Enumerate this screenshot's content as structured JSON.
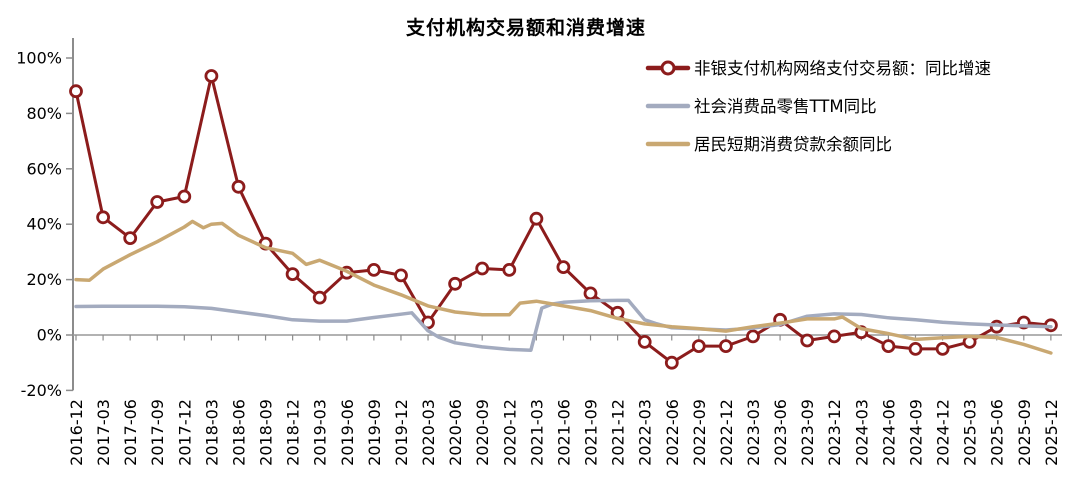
{
  "title": "支付机构交易额和消费增速",
  "chart_data": {
    "type": "line",
    "title": "支付机构交易额和消费增速",
    "xlabel": "",
    "ylabel": "",
    "ylim": [
      -20,
      100
    ],
    "grid": "zero-line-only",
    "legend_position": "top-right",
    "axis_color": "#8c8c8c",
    "tick_label_color": "#000000",
    "yticks": [
      {
        "v": 100,
        "label": "100%"
      },
      {
        "v": 80,
        "label": "80%"
      },
      {
        "v": 60,
        "label": "60%"
      },
      {
        "v": 40,
        "label": "40%"
      },
      {
        "v": 20,
        "label": "20%"
      },
      {
        "v": 0,
        "label": "0%"
      },
      {
        "v": -20,
        "label": "-20%"
      }
    ],
    "x_categories": [
      "2016-12",
      "2017-03",
      "2017-06",
      "2017-09",
      "2017-12",
      "2018-03",
      "2018-06",
      "2018-09",
      "2018-12",
      "2019-03",
      "2019-06",
      "2019-09",
      "2019-12",
      "2020-03",
      "2020-06",
      "2020-09",
      "2020-12",
      "2021-03",
      "2021-06",
      "2021-09",
      "2021-12",
      "2022-03",
      "2022-06",
      "2022-09",
      "2022-12",
      "2023-03",
      "2023-06",
      "2023-09",
      "2023-12",
      "2024-03",
      "2024-06",
      "2024-09",
      "2024-12",
      "2025-03",
      "2025-06",
      "2025-09",
      "2025-12"
    ],
    "series": [
      {
        "name": "非银支付机构网络支付交易额：同比增速",
        "color": "#8C1C1C",
        "line_width": 3,
        "marker": "circle",
        "points": [
          [
            0,
            88
          ],
          [
            1,
            42.5
          ],
          [
            2,
            35
          ],
          [
            3,
            48
          ],
          [
            4,
            50
          ],
          [
            5,
            93.5
          ],
          [
            6,
            53.5
          ],
          [
            7,
            33
          ],
          [
            8,
            22
          ],
          [
            9,
            13.5
          ],
          [
            10,
            22.5
          ],
          [
            11,
            23.5
          ],
          [
            12,
            21.5
          ],
          [
            13,
            4.5
          ],
          [
            14,
            18.5
          ],
          [
            15,
            24
          ],
          [
            16,
            23.5
          ],
          [
            17,
            42
          ],
          [
            18,
            24.5
          ],
          [
            19,
            15
          ],
          [
            20,
            8
          ],
          [
            21,
            -2.5
          ],
          [
            22,
            -10
          ],
          [
            23,
            -4
          ],
          [
            24,
            -4
          ],
          [
            25,
            -0.5
          ],
          [
            26,
            5.5
          ],
          [
            27,
            -2
          ],
          [
            28,
            -0.5
          ],
          [
            29,
            1
          ],
          [
            30,
            -4
          ],
          [
            31,
            -5
          ],
          [
            32,
            -5
          ],
          [
            33,
            -2.5
          ],
          [
            34,
            3
          ],
          [
            35,
            4.5
          ],
          [
            36,
            3.5
          ]
        ]
      },
      {
        "name": "社会消费品零售TTM同比",
        "color": "#A3ABBF",
        "line_width": 3.5,
        "marker": "none",
        "points": [
          [
            0,
            10.3
          ],
          [
            1,
            10.4
          ],
          [
            2,
            10.4
          ],
          [
            3,
            10.4
          ],
          [
            4,
            10.2
          ],
          [
            5,
            9.6
          ],
          [
            6,
            8.3
          ],
          [
            7,
            7
          ],
          [
            8,
            5.5
          ],
          [
            9,
            5
          ],
          [
            10,
            5
          ],
          [
            11,
            6.3
          ],
          [
            12,
            7.5
          ],
          [
            12.4,
            8
          ],
          [
            13,
            1.5
          ],
          [
            13.4,
            -0.8
          ],
          [
            14,
            -2.8
          ],
          [
            15,
            -4.3
          ],
          [
            16,
            -5.2
          ],
          [
            16.8,
            -5.5
          ],
          [
            17.2,
            9.7
          ],
          [
            17.6,
            11.2
          ],
          [
            18,
            11.8
          ],
          [
            19,
            12.4
          ],
          [
            20,
            12.5
          ],
          [
            20.4,
            12.5
          ],
          [
            21,
            5.5
          ],
          [
            21.4,
            4.2
          ],
          [
            22,
            2.6
          ],
          [
            23,
            2.2
          ],
          [
            24,
            1.8
          ],
          [
            25,
            2.5
          ],
          [
            26,
            3.8
          ],
          [
            27,
            6.8
          ],
          [
            28,
            7.6
          ],
          [
            29,
            7.4
          ],
          [
            30,
            6.2
          ],
          [
            31,
            5.5
          ],
          [
            32,
            4.6
          ],
          [
            33,
            4
          ],
          [
            34,
            3.6
          ],
          [
            35,
            3.3
          ],
          [
            36,
            3
          ]
        ]
      },
      {
        "name": "居民短期消费贷款余额同比",
        "color": "#C9A872",
        "line_width": 3.5,
        "marker": "none",
        "points": [
          [
            0,
            20
          ],
          [
            0.5,
            19.8
          ],
          [
            1,
            23.8
          ],
          [
            2,
            29
          ],
          [
            3,
            33.7
          ],
          [
            4,
            39
          ],
          [
            4.3,
            41
          ],
          [
            4.7,
            38.7
          ],
          [
            5,
            40
          ],
          [
            5.4,
            40.3
          ],
          [
            6,
            36
          ],
          [
            7,
            31.5
          ],
          [
            8,
            29.5
          ],
          [
            8.5,
            25.5
          ],
          [
            9,
            27
          ],
          [
            10,
            23
          ],
          [
            11,
            18
          ],
          [
            12,
            14.5
          ],
          [
            13,
            10.5
          ],
          [
            14,
            8.3
          ],
          [
            15,
            7.3
          ],
          [
            16,
            7.3
          ],
          [
            16.4,
            11.5
          ],
          [
            17,
            12.2
          ],
          [
            18,
            10.5
          ],
          [
            19,
            8.8
          ],
          [
            20,
            6
          ],
          [
            21,
            4
          ],
          [
            22,
            3
          ],
          [
            23,
            2.3
          ],
          [
            24,
            1.4
          ],
          [
            25,
            3
          ],
          [
            26,
            4.3
          ],
          [
            27,
            5.8
          ],
          [
            28,
            5.8
          ],
          [
            28.3,
            6.5
          ],
          [
            29,
            2.3
          ],
          [
            30,
            0.5
          ],
          [
            31,
            -1.6
          ],
          [
            32,
            -1
          ],
          [
            33,
            -0.5
          ],
          [
            34,
            -0.9
          ],
          [
            35,
            -3.4
          ],
          [
            36,
            -6.5
          ]
        ]
      }
    ]
  }
}
